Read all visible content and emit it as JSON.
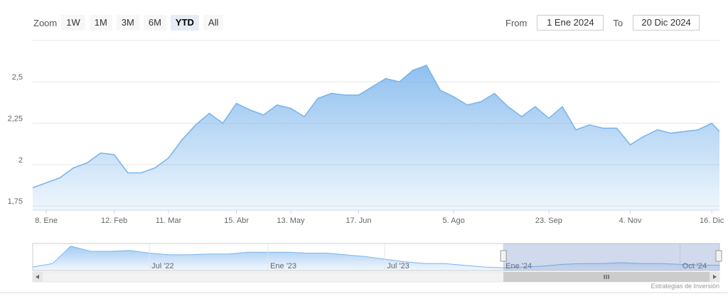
{
  "range_selector": {
    "zoom_label": "Zoom",
    "buttons": [
      "1W",
      "1M",
      "3M",
      "6M",
      "YTD",
      "All"
    ],
    "selected": 4,
    "from_label": "From",
    "from": "1 Ene 2024",
    "to_label": "To",
    "to": "20 Dic 2024"
  },
  "credits": "Estrategias de Inversión",
  "chart_data": [
    {
      "type": "area",
      "color": "#7cb5ec",
      "grid": true,
      "x": [
        "2024-01-01",
        "2024-01-08",
        "2024-01-15",
        "2024-01-22",
        "2024-01-29",
        "2024-02-05",
        "2024-02-12",
        "2024-02-19",
        "2024-02-26",
        "2024-03-04",
        "2024-03-11",
        "2024-03-18",
        "2024-03-25",
        "2024-04-01",
        "2024-04-08",
        "2024-04-15",
        "2024-04-22",
        "2024-04-29",
        "2024-05-06",
        "2024-05-13",
        "2024-05-20",
        "2024-05-27",
        "2024-06-03",
        "2024-06-10",
        "2024-06-17",
        "2024-06-24",
        "2024-07-01",
        "2024-07-08",
        "2024-07-15",
        "2024-07-22",
        "2024-07-29",
        "2024-08-05",
        "2024-08-12",
        "2024-08-19",
        "2024-08-26",
        "2024-09-02",
        "2024-09-09",
        "2024-09-16",
        "2024-09-23",
        "2024-09-30",
        "2024-10-07",
        "2024-10-14",
        "2024-10-21",
        "2024-10-28",
        "2024-11-04",
        "2024-11-11",
        "2024-11-18",
        "2024-11-25",
        "2024-12-02",
        "2024-12-09",
        "2024-12-16",
        "2024-12-20"
      ],
      "values": [
        1.86,
        1.89,
        1.92,
        1.98,
        2.01,
        2.07,
        2.06,
        1.95,
        1.95,
        1.98,
        2.04,
        2.15,
        2.24,
        2.31,
        2.25,
        2.37,
        2.33,
        2.3,
        2.36,
        2.34,
        2.29,
        2.4,
        2.43,
        2.42,
        2.42,
        2.47,
        2.52,
        2.5,
        2.57,
        2.6,
        2.45,
        2.41,
        2.36,
        2.38,
        2.43,
        2.35,
        2.29,
        2.35,
        2.28,
        2.35,
        2.21,
        2.24,
        2.22,
        2.22,
        2.12,
        2.17,
        2.21,
        2.19,
        2.2,
        2.21,
        2.25,
        2.2
      ],
      "xlim": [
        "2024-01-01",
        "2024-12-20"
      ],
      "xticks": [
        {
          "value": "2024-01-08",
          "label": "8. Ene"
        },
        {
          "value": "2024-02-12",
          "label": "12. Feb"
        },
        {
          "value": "2024-03-11",
          "label": "11. Mar"
        },
        {
          "value": "2024-04-15",
          "label": "15. Abr"
        },
        {
          "value": "2024-05-13",
          "label": "13. May"
        },
        {
          "value": "2024-06-17",
          "label": "17. Jun"
        },
        {
          "value": "2024-08-05",
          "label": "5. Ago"
        },
        {
          "value": "2024-09-23",
          "label": "23. Sep"
        },
        {
          "value": "2024-11-04",
          "label": "4. Nov"
        },
        {
          "value": "2024-12-16",
          "label": "16. Dic"
        }
      ],
      "ylim": [
        1.725,
        2.75
      ],
      "yticks": [
        {
          "value": 1.75,
          "label": "1,75"
        },
        2,
        {
          "value": 2.25,
          "label": "2,25"
        },
        {
          "value": 2.5,
          "label": "2,5"
        }
      ]
    },
    {
      "type": "area",
      "color": "#7cb5ec",
      "grid": false,
      "x": [
        "2022-01",
        "2022-02",
        "2022-03",
        "2022-04",
        "2022-05",
        "2022-06",
        "2022-07",
        "2022-08",
        "2022-09",
        "2022-10",
        "2022-11",
        "2022-12",
        "2023-01",
        "2023-02",
        "2023-03",
        "2023-04",
        "2023-05",
        "2023-06",
        "2023-07",
        "2023-08",
        "2023-09",
        "2023-10",
        "2023-11",
        "2023-12",
        "2024-01",
        "2024-02",
        "2024-03",
        "2024-04",
        "2024-05",
        "2024-06",
        "2024-07",
        "2024-08",
        "2024-09",
        "2024-10",
        "2024-11",
        "2024-12"
      ],
      "values": [
        2.0,
        2.4,
        4.4,
        3.8,
        3.8,
        3.9,
        3.6,
        3.4,
        3.4,
        3.5,
        3.5,
        3.7,
        3.7,
        3.7,
        3.6,
        3.6,
        3.4,
        3.2,
        2.9,
        2.6,
        2.4,
        2.4,
        2.2,
        2.0,
        1.9,
        2.0,
        2.1,
        2.3,
        2.4,
        2.4,
        2.5,
        2.4,
        2.4,
        2.3,
        2.2,
        2.2
      ],
      "xlim": [
        "2022-01",
        "2024-12"
      ],
      "xticks": [
        {
          "value": "2022-07",
          "label": "Jul '22"
        },
        {
          "value": "2023-01",
          "label": "Ene '23"
        },
        {
          "value": "2023-07",
          "label": "Jul '23"
        },
        {
          "value": "2024-01",
          "label": "Ene '24"
        },
        {
          "value": "2024-10",
          "label": "Oct '24"
        }
      ],
      "ylim": [
        1.6,
        4.7
      ]
    }
  ]
}
